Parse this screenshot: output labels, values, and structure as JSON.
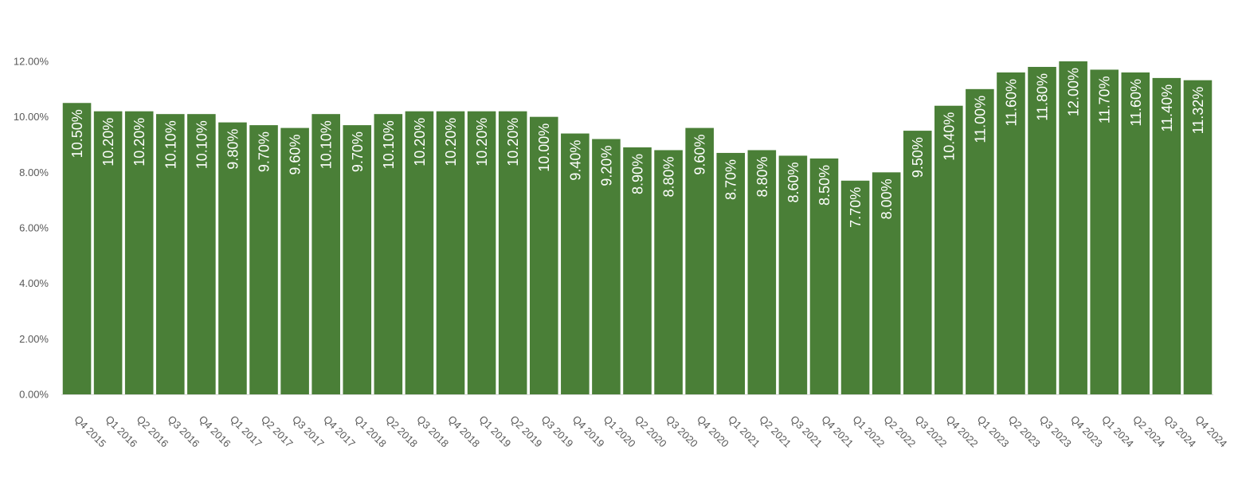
{
  "chart_data": {
    "type": "bar",
    "title": "",
    "xlabel": "",
    "ylabel": "",
    "ylim": [
      0,
      12
    ],
    "yticks": [
      "0.00%",
      "2.00%",
      "4.00%",
      "6.00%",
      "8.00%",
      "10.00%",
      "12.00%"
    ],
    "bar_color": "#4a7f37",
    "label_color": "#ffffff",
    "categories": [
      "Q4 2015",
      "Q1 2016",
      "Q2 2016",
      "Q3 2016",
      "Q4 2016",
      "Q1 2017",
      "Q2 2017",
      "Q3 2017",
      "Q4 2017",
      "Q1 2018",
      "Q2 2018",
      "Q3 2018",
      "Q4 2018",
      "Q1 2019",
      "Q2 2019",
      "Q3 2019",
      "Q4 2019",
      "Q1 2020",
      "Q2 2020",
      "Q3 2020",
      "Q4 2020",
      "Q1 2021",
      "Q2 2021",
      "Q3 2021",
      "Q4 2021",
      "Q1 2022",
      "Q2 2022",
      "Q3 2022",
      "Q4 2022",
      "Q1 2023",
      "Q2 2023",
      "Q3 2023",
      "Q4 2023",
      "Q1 2024",
      "Q2 2024",
      "Q3 2024",
      "Q4 2024"
    ],
    "values": [
      10.5,
      10.2,
      10.2,
      10.1,
      10.1,
      9.8,
      9.7,
      9.6,
      10.1,
      9.7,
      10.1,
      10.2,
      10.2,
      10.2,
      10.2,
      10.0,
      9.4,
      9.2,
      8.9,
      8.8,
      9.6,
      8.7,
      8.8,
      8.6,
      8.5,
      7.7,
      8.0,
      9.5,
      10.4,
      11.0,
      11.6,
      11.8,
      12.0,
      11.7,
      11.6,
      11.4,
      11.32
    ],
    "data_labels": [
      "10.50%",
      "10.20%",
      "10.20%",
      "10.10%",
      "10.10%",
      "9.80%",
      "9.70%",
      "9.60%",
      "10.10%",
      "9.70%",
      "10.10%",
      "10.20%",
      "10.20%",
      "10.20%",
      "10.20%",
      "10.00%",
      "9.40%",
      "9.20%",
      "8.90%",
      "8.80%",
      "9.60%",
      "8.70%",
      "8.80%",
      "8.60%",
      "8.50%",
      "7.70%",
      "8.00%",
      "9.50%",
      "10.40%",
      "11.00%",
      "11.60%",
      "11.80%",
      "12.00%",
      "11.70%",
      "11.60%",
      "11.40%",
      "11.32%"
    ],
    "grid": false,
    "legend": "none"
  }
}
